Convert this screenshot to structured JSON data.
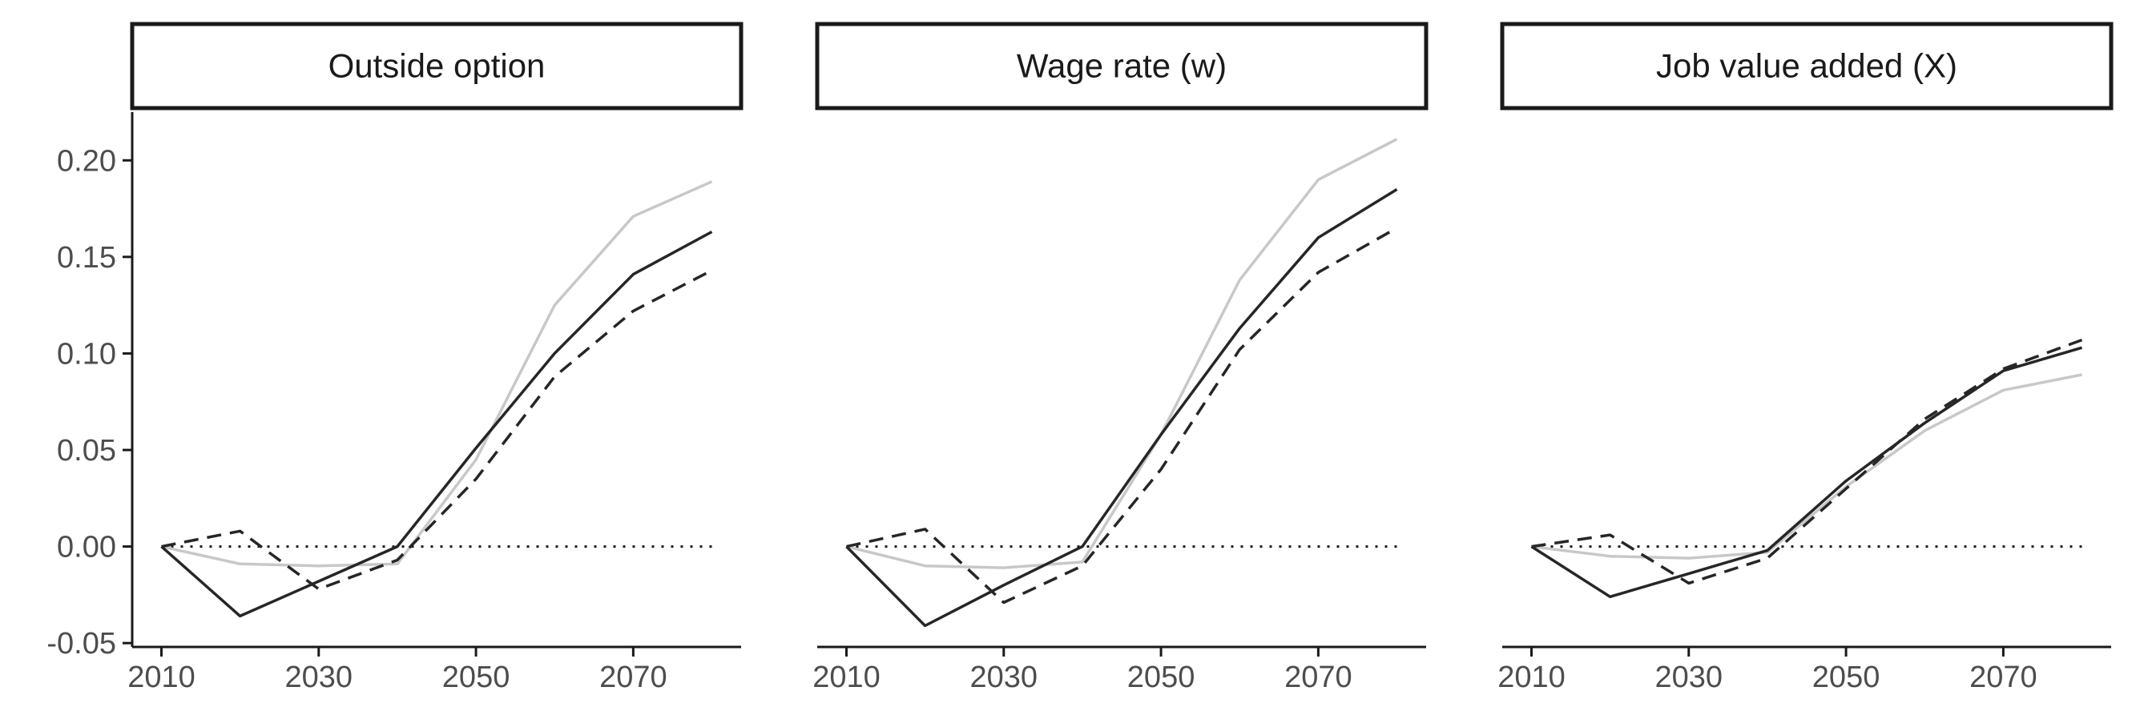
{
  "chart_data": [
    {
      "type": "line",
      "title": "Outside option",
      "x": [
        2010,
        2020,
        2030,
        2040,
        2050,
        2060,
        2070,
        2080
      ],
      "xticks": [
        "2010",
        "2030",
        "2050",
        "2070"
      ],
      "yticks": [
        "-0.05",
        "0.00",
        "0.05",
        "0.10",
        "0.15",
        "0.20"
      ],
      "ylim": [
        -0.052,
        0.225
      ],
      "reference_line": 0,
      "series": [
        {
          "style": "light",
          "color": "#c8c8c8",
          "values": [
            0.0,
            -0.009,
            -0.01,
            -0.009,
            0.045,
            0.125,
            0.171,
            0.189
          ]
        },
        {
          "style": "solid",
          "color": "#262626",
          "values": [
            0.0,
            -0.036,
            -0.018,
            0.0,
            0.051,
            0.1,
            0.141,
            0.163
          ]
        },
        {
          "style": "dashed",
          "color": "#262626",
          "values": [
            0.0,
            0.008,
            -0.022,
            -0.007,
            0.035,
            0.088,
            0.122,
            0.143
          ]
        }
      ]
    },
    {
      "type": "line",
      "title": "Wage rate (w)",
      "x": [
        2010,
        2020,
        2030,
        2040,
        2050,
        2060,
        2070,
        2080
      ],
      "xticks": [
        "2010",
        "2030",
        "2050",
        "2070"
      ],
      "yticks": [
        "-0.05",
        "0.00",
        "0.05",
        "0.10",
        "0.15",
        "0.20"
      ],
      "ylim": [
        -0.052,
        0.225
      ],
      "reference_line": 0,
      "series": [
        {
          "style": "light",
          "color": "#c8c8c8",
          "values": [
            0.0,
            -0.01,
            -0.011,
            -0.008,
            0.058,
            0.138,
            0.19,
            0.211
          ]
        },
        {
          "style": "solid",
          "color": "#262626",
          "values": [
            0.0,
            -0.041,
            -0.02,
            0.0,
            0.058,
            0.113,
            0.16,
            0.185
          ]
        },
        {
          "style": "dashed",
          "color": "#262626",
          "values": [
            0.0,
            0.009,
            -0.029,
            -0.01,
            0.04,
            0.102,
            0.142,
            0.165
          ]
        }
      ]
    },
    {
      "type": "line",
      "title": "Job value added (X)",
      "x": [
        2010,
        2020,
        2030,
        2040,
        2050,
        2060,
        2070,
        2080
      ],
      "xticks": [
        "2010",
        "2030",
        "2050",
        "2070"
      ],
      "yticks": [
        "-0.05",
        "0.00",
        "0.05",
        "0.10",
        "0.15",
        "0.20"
      ],
      "ylim": [
        -0.052,
        0.225
      ],
      "reference_line": 0,
      "series": [
        {
          "style": "light",
          "color": "#c8c8c8",
          "values": [
            0.0,
            -0.005,
            -0.006,
            -0.003,
            0.031,
            0.06,
            0.081,
            0.089
          ]
        },
        {
          "style": "solid",
          "color": "#262626",
          "values": [
            0.0,
            -0.026,
            -0.014,
            -0.002,
            0.034,
            0.064,
            0.091,
            0.103
          ]
        },
        {
          "style": "dashed",
          "color": "#262626",
          "values": [
            0.0,
            0.006,
            -0.019,
            -0.006,
            0.03,
            0.066,
            0.092,
            0.107
          ]
        }
      ]
    }
  ]
}
